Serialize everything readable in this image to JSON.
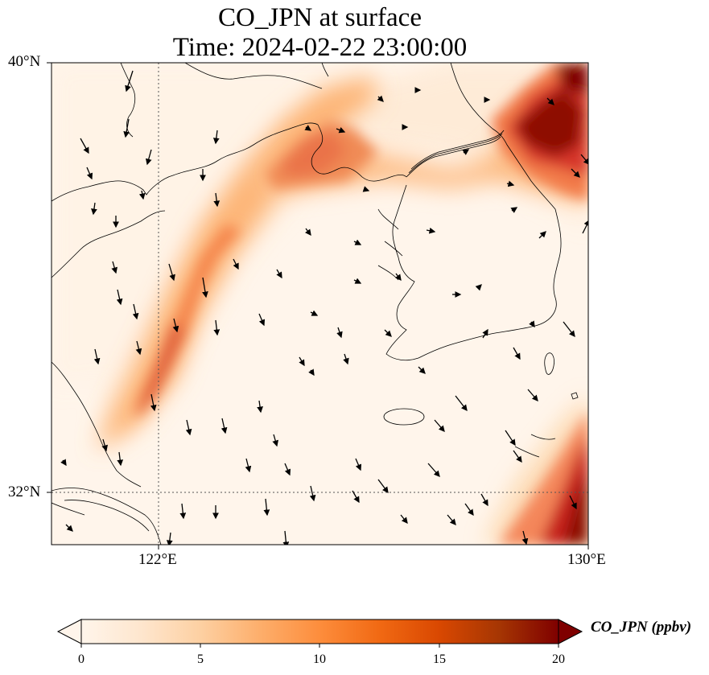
{
  "title": {
    "line1": "CO_JPN at surface",
    "line2": "Time: 2024-02-22 23:00:00"
  },
  "axes": {
    "lat_labels": [
      "40°N",
      "32°N"
    ],
    "lon_labels": [
      "122°E",
      "130°E"
    ],
    "lat_range": [
      31.2,
      40.0
    ],
    "lon_range": [
      120.0,
      130.0
    ],
    "gridlines": "dotted at 122°E and 32°N"
  },
  "colorbar": {
    "label": "CO_JPN (ppbv)",
    "ticks": [
      "0",
      "5",
      "10",
      "15",
      "20"
    ],
    "range": [
      0,
      20
    ],
    "extend": "both",
    "colormap": [
      "#fff5eb",
      "#fee6ce",
      "#fdd0a2",
      "#fdae6b",
      "#fd8d3c",
      "#f16913",
      "#d94801",
      "#a63603",
      "#7f0000"
    ]
  },
  "colors": {
    "coastline": "#000000",
    "wind_arrow": "#000000"
  },
  "chart_data": {
    "type": "heatmap",
    "variable": "CO_JPN",
    "units": "ppbv",
    "plumes": [
      {
        "name": "band along 121.5-124.5°E, 33-38°N",
        "peak_ppbv": 11
      },
      {
        "name": "northern Yellow Sea / Bohai coast near 38.5°N",
        "peak_ppbv": 9
      },
      {
        "name": "northeast corner near 129.5°E, 39.3°N",
        "peak_ppbv": 20
      },
      {
        "name": "southeast corner near 129.8°E, 31.8°N",
        "peak_ppbv": 20
      }
    ],
    "wind_vectors": "predominantly southward to south-southwestward across domain"
  }
}
